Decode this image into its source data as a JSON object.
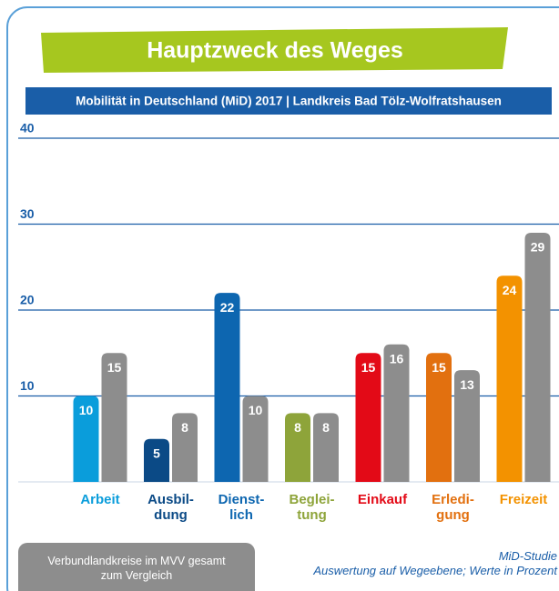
{
  "chart_data": {
    "type": "bar",
    "title": "Hauptzweck des Weges",
    "subtitle": "Mobilität in Deutschland (MiD) 2017 | Landkreis Bad Tölz-Wolfratshausen",
    "categories": [
      "Arbeit",
      "Ausbil-\ndung",
      "Dienst-\nlich",
      "Beglei-\ntung",
      "Einkauf",
      "Erledi-\ngung",
      "Freizeit"
    ],
    "series": [
      {
        "colors": [
          "#0a9ddb",
          "#0b4a86",
          "#0d66b0",
          "#8ea43a",
          "#e30a17",
          "#e2700f",
          "#f39200"
        ],
        "values": [
          10,
          5,
          22,
          8,
          15,
          15,
          24
        ]
      },
      {
        "name": "Verbundlandkreise im MVV gesamt\nzum Vergleich",
        "color": "#8d8d8d",
        "values": [
          15,
          8,
          10,
          8,
          16,
          13,
          29
        ]
      }
    ],
    "ylim": [
      0,
      40
    ],
    "yticks": [
      10,
      20,
      30,
      40
    ],
    "grid": true,
    "notes": [
      "MiD-Studie",
      "Auswertung auf Wegeebene; Werte in Prozent"
    ]
  }
}
